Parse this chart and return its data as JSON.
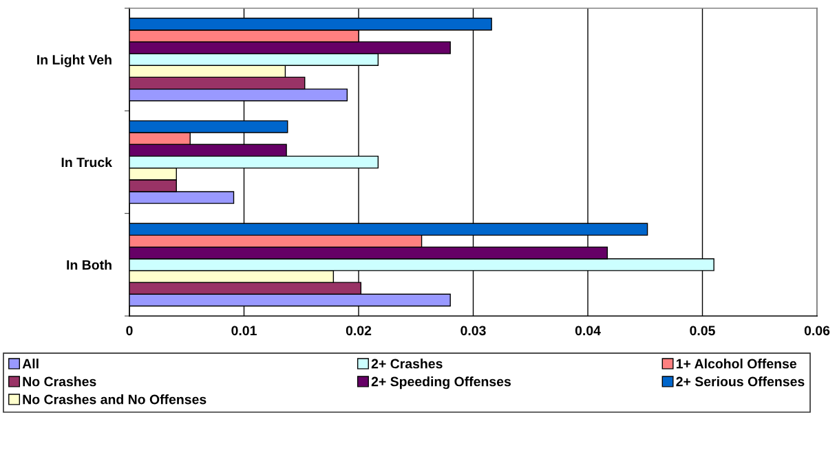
{
  "chart_data": {
    "type": "bar",
    "orientation": "horizontal",
    "categories": [
      "In Light Veh",
      "In Truck",
      "In Both"
    ],
    "series": [
      {
        "name": "All",
        "color": "#9999ff",
        "values": [
          0.019,
          0.0091,
          0.028
        ]
      },
      {
        "name": "No Crashes",
        "color": "#993366",
        "values": [
          0.0153,
          0.0041,
          0.0202
        ]
      },
      {
        "name": "No Crashes and No Offenses",
        "color": "#ffffcc",
        "values": [
          0.0136,
          0.0041,
          0.0178
        ]
      },
      {
        "name": "2+ Crashes",
        "color": "#ccffff",
        "values": [
          0.0217,
          0.0217,
          0.051
        ]
      },
      {
        "name": "2+ Speeding Offenses",
        "color": "#660066",
        "values": [
          0.028,
          0.0137,
          0.0417
        ]
      },
      {
        "name": "1+ Alcohol Offense",
        "color": "#ff8080",
        "values": [
          0.02,
          0.0053,
          0.0255
        ]
      },
      {
        "name": "2+ Serious Offenses",
        "color": "#0066cc",
        "values": [
          0.0316,
          0.0138,
          0.0452
        ]
      }
    ],
    "xlim": [
      0,
      0.06
    ],
    "xticks": [
      0,
      0.01,
      0.02,
      0.03,
      0.04,
      0.05,
      0.06
    ],
    "grid": "x",
    "legend": "bottom"
  }
}
